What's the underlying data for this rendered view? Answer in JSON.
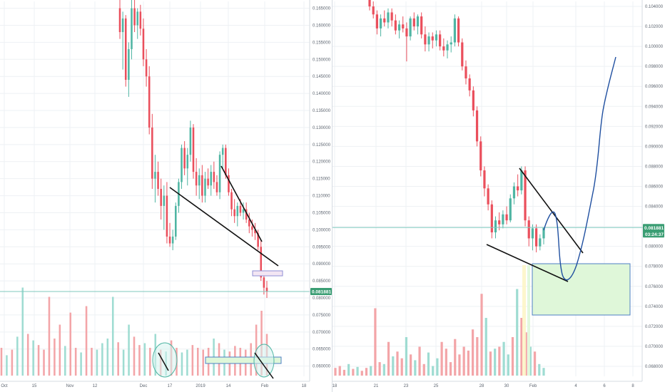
{
  "colors": {
    "up": "#4fb5a3",
    "down": "#ea4f5c",
    "vol_up": "#9fdcd2",
    "vol_down": "#f3a5a8",
    "grid": "#eef1f4",
    "axis_text": "#5d6570",
    "price_line": "#7fc9bd",
    "price_tag": "#3a9d73",
    "trendline": "#111111",
    "projection": "#1f4fa0",
    "target_fill": "#dff7d9",
    "target_stroke": "#4e7fc4",
    "highlight_fill": "#d6f2ee"
  },
  "chart_data": [
    {
      "type": "candlestick",
      "panel": "left",
      "interval": "daily",
      "x_tick_labels": [
        "Oct",
        "15",
        "Nov",
        "12",
        "Dec",
        "17",
        "2019",
        "14",
        "Feb",
        "18"
      ],
      "y_tick_labels": [
        "0.165000",
        "0.160000",
        "0.155000",
        "0.150000",
        "0.145000",
        "0.140000",
        "0.135000",
        "0.130000",
        "0.125000",
        "0.120000",
        "0.115000",
        "0.110000",
        "0.105000",
        "0.100000",
        "0.095000",
        "0.090000",
        "0.085000",
        "0.080000",
        "0.075000",
        "0.070000",
        "0.065000",
        "0.060000"
      ],
      "ylim": [
        0.057,
        0.167
      ],
      "current_price": "0.081881",
      "candles": [
        [
          0.165,
          0.168,
          0.156,
          0.158
        ],
        [
          0.158,
          0.164,
          0.147,
          0.162
        ],
        [
          0.162,
          0.163,
          0.142,
          0.144
        ],
        [
          0.144,
          0.155,
          0.139,
          0.153
        ],
        [
          0.153,
          0.17,
          0.15,
          0.165
        ],
        [
          0.165,
          0.168,
          0.158,
          0.16
        ],
        [
          0.16,
          0.165,
          0.156,
          0.164
        ],
        [
          0.164,
          0.166,
          0.157,
          0.159
        ],
        [
          0.159,
          0.162,
          0.148,
          0.15
        ],
        [
          0.15,
          0.153,
          0.142,
          0.145
        ],
        [
          0.145,
          0.148,
          0.128,
          0.13
        ],
        [
          0.13,
          0.134,
          0.112,
          0.115
        ],
        [
          0.115,
          0.122,
          0.108,
          0.117
        ],
        [
          0.117,
          0.12,
          0.11,
          0.112
        ],
        [
          0.112,
          0.115,
          0.103,
          0.107
        ],
        [
          0.107,
          0.113,
          0.1,
          0.11
        ],
        [
          0.11,
          0.114,
          0.096,
          0.098
        ],
        [
          0.098,
          0.102,
          0.095,
          0.096
        ],
        [
          0.096,
          0.1,
          0.094,
          0.098
        ],
        [
          0.098,
          0.108,
          0.097,
          0.107
        ],
        [
          0.107,
          0.115,
          0.105,
          0.114
        ],
        [
          0.114,
          0.125,
          0.112,
          0.124
        ],
        [
          0.124,
          0.126,
          0.116,
          0.118
        ],
        [
          0.118,
          0.124,
          0.113,
          0.122
        ],
        [
          0.122,
          0.132,
          0.12,
          0.13
        ],
        [
          0.13,
          0.131,
          0.115,
          0.117
        ],
        [
          0.117,
          0.121,
          0.11,
          0.113
        ],
        [
          0.113,
          0.118,
          0.109,
          0.116
        ],
        [
          0.116,
          0.119,
          0.108,
          0.11
        ],
        [
          0.11,
          0.117,
          0.108,
          0.115
        ],
        [
          0.115,
          0.118,
          0.112,
          0.113
        ],
        [
          0.113,
          0.119,
          0.11,
          0.117
        ],
        [
          0.117,
          0.12,
          0.112,
          0.114
        ],
        [
          0.114,
          0.116,
          0.11,
          0.111
        ],
        [
          0.111,
          0.123,
          0.109,
          0.122
        ],
        [
          0.122,
          0.125,
          0.118,
          0.124
        ],
        [
          0.124,
          0.125,
          0.115,
          0.116
        ],
        [
          0.116,
          0.118,
          0.11,
          0.111
        ],
        [
          0.111,
          0.112,
          0.104,
          0.106
        ],
        [
          0.106,
          0.109,
          0.102,
          0.104
        ],
        [
          0.104,
          0.108,
          0.101,
          0.107
        ],
        [
          0.107,
          0.109,
          0.104,
          0.105
        ],
        [
          0.105,
          0.108,
          0.103,
          0.106
        ],
        [
          0.106,
          0.108,
          0.102,
          0.103
        ],
        [
          0.103,
          0.105,
          0.099,
          0.101
        ],
        [
          0.101,
          0.103,
          0.098,
          0.1
        ],
        [
          0.1,
          0.102,
          0.097,
          0.099
        ],
        [
          0.099,
          0.1,
          0.094,
          0.095
        ],
        [
          0.095,
          0.097,
          0.085,
          0.086
        ],
        [
          0.086,
          0.087,
          0.081,
          0.083
        ],
        [
          0.083,
          0.085,
          0.08,
          0.0819
        ]
      ],
      "volumes": [
        0.3,
        0.22,
        0.28,
        0.42,
        0.95,
        0.45,
        0.38,
        0.33,
        0.28,
        0.85,
        0.4,
        0.55,
        0.32,
        0.68,
        0.3,
        0.25,
        0.75,
        0.3,
        0.28,
        0.35,
        0.4,
        0.85,
        0.36,
        0.28,
        0.55,
        0.42,
        0.33,
        0.35,
        0.3,
        0.45,
        0.28,
        0.26,
        0.38,
        0.3,
        0.25,
        0.28,
        0.33,
        0.3,
        0.28,
        0.3,
        0.4,
        0.35,
        0.28,
        0.26,
        0.32,
        0.3,
        0.28,
        0.35,
        0.55,
        0.7,
        0.45
      ]
    },
    {
      "type": "candlestick",
      "panel": "right",
      "interval": "4h",
      "x_tick_labels": [
        "18",
        "21",
        "23",
        "25",
        "28",
        "30",
        "Feb",
        "4",
        "6",
        "8"
      ],
      "y_tick_labels": [
        "0.104000",
        "0.102000",
        "0.100000",
        "0.098000",
        "0.096000",
        "0.094000",
        "0.092000",
        "0.090000",
        "0.088000",
        "0.086000",
        "0.084000",
        "0.082000",
        "0.080000",
        "0.078000",
        "0.076000",
        "0.074000",
        "0.072000",
        "0.070000",
        "0.068000"
      ],
      "ylim": [
        0.067,
        0.1045
      ],
      "current_price": "0.081881",
      "countdown": "03:24:37",
      "candles": [
        [
          0.1048,
          0.1052,
          0.1036,
          0.104
        ],
        [
          0.104,
          0.1045,
          0.1028,
          0.1032
        ],
        [
          0.1032,
          0.1036,
          0.1012,
          0.1018
        ],
        [
          0.1018,
          0.1032,
          0.101,
          0.1028
        ],
        [
          0.1028,
          0.1036,
          0.102,
          0.1024
        ],
        [
          0.1024,
          0.1038,
          0.1018,
          0.1034
        ],
        [
          0.1034,
          0.1038,
          0.102,
          0.1026
        ],
        [
          0.1026,
          0.1032,
          0.1012,
          0.1016
        ],
        [
          0.1016,
          0.1026,
          0.1008,
          0.1022
        ],
        [
          0.1022,
          0.103,
          0.1014,
          0.1018
        ],
        [
          0.1018,
          0.1024,
          0.0985,
          0.101
        ],
        [
          0.101,
          0.103,
          0.1006,
          0.1028
        ],
        [
          0.1028,
          0.1034,
          0.1016,
          0.102
        ],
        [
          0.102,
          0.1032,
          0.1012,
          0.103
        ],
        [
          0.103,
          0.1034,
          0.1008,
          0.1012
        ],
        [
          0.1012,
          0.102,
          0.0995,
          0.1002
        ],
        [
          0.1002,
          0.1014,
          0.0995,
          0.101
        ],
        [
          0.101,
          0.1014,
          0.0998,
          0.1006
        ],
        [
          0.1006,
          0.1016,
          0.1,
          0.1012
        ],
        [
          0.1012,
          0.1016,
          0.0996,
          0.1
        ],
        [
          0.1,
          0.1008,
          0.099,
          0.0996
        ],
        [
          0.0996,
          0.1006,
          0.0988,
          0.1002
        ],
        [
          0.1002,
          0.101,
          0.0994,
          0.1004
        ],
        [
          0.1004,
          0.1032,
          0.1,
          0.1028
        ],
        [
          0.1028,
          0.103,
          0.1,
          0.1004
        ],
        [
          0.1004,
          0.1008,
          0.0976,
          0.098
        ],
        [
          0.098,
          0.0986,
          0.0962,
          0.0968
        ],
        [
          0.0968,
          0.0972,
          0.095,
          0.0956
        ],
        [
          0.0956,
          0.096,
          0.093,
          0.0936
        ],
        [
          0.0936,
          0.094,
          0.09,
          0.0905
        ],
        [
          0.0905,
          0.091,
          0.087,
          0.0876
        ],
        [
          0.0876,
          0.088,
          0.085,
          0.0858
        ],
        [
          0.0858,
          0.0862,
          0.0836,
          0.0842
        ],
        [
          0.0842,
          0.0846,
          0.0808,
          0.0814
        ],
        [
          0.0814,
          0.083,
          0.0808,
          0.0826
        ],
        [
          0.0826,
          0.0834,
          0.0816,
          0.0822
        ],
        [
          0.0822,
          0.0836,
          0.0818,
          0.0832
        ],
        [
          0.0832,
          0.084,
          0.0822,
          0.0826
        ],
        [
          0.0826,
          0.0852,
          0.0824,
          0.0848
        ],
        [
          0.0848,
          0.0864,
          0.0842,
          0.086
        ],
        [
          0.086,
          0.0872,
          0.085,
          0.0856
        ],
        [
          0.0856,
          0.088,
          0.0852,
          0.0876
        ],
        [
          0.0876,
          0.088,
          0.082,
          0.0826
        ],
        [
          0.0826,
          0.083,
          0.08,
          0.0808
        ],
        [
          0.0808,
          0.0822,
          0.0796,
          0.0818
        ],
        [
          0.0818,
          0.0822,
          0.0794,
          0.08
        ],
        [
          0.08,
          0.0812,
          0.0796,
          0.0808
        ],
        [
          0.0808,
          0.0818,
          0.0802,
          0.0819
        ]
      ],
      "volumes": [
        0.08,
        0.1,
        0.06,
        0.12,
        0.07,
        0.09,
        0.05,
        0.08,
        0.1,
        0.7,
        0.14,
        0.12,
        0.35,
        0.2,
        0.25,
        0.18,
        0.4,
        0.22,
        0.16,
        0.3,
        0.12,
        0.24,
        0.1,
        0.18,
        0.35,
        0.28,
        0.14,
        0.38,
        0.22,
        0.3,
        0.26,
        0.48,
        0.4,
        0.85,
        0.6,
        0.25,
        0.28,
        0.3,
        0.35,
        0.22,
        0.4,
        0.9,
        0.6,
        0.45,
        0.3,
        0.25,
        0.12,
        0.08
      ]
    }
  ]
}
